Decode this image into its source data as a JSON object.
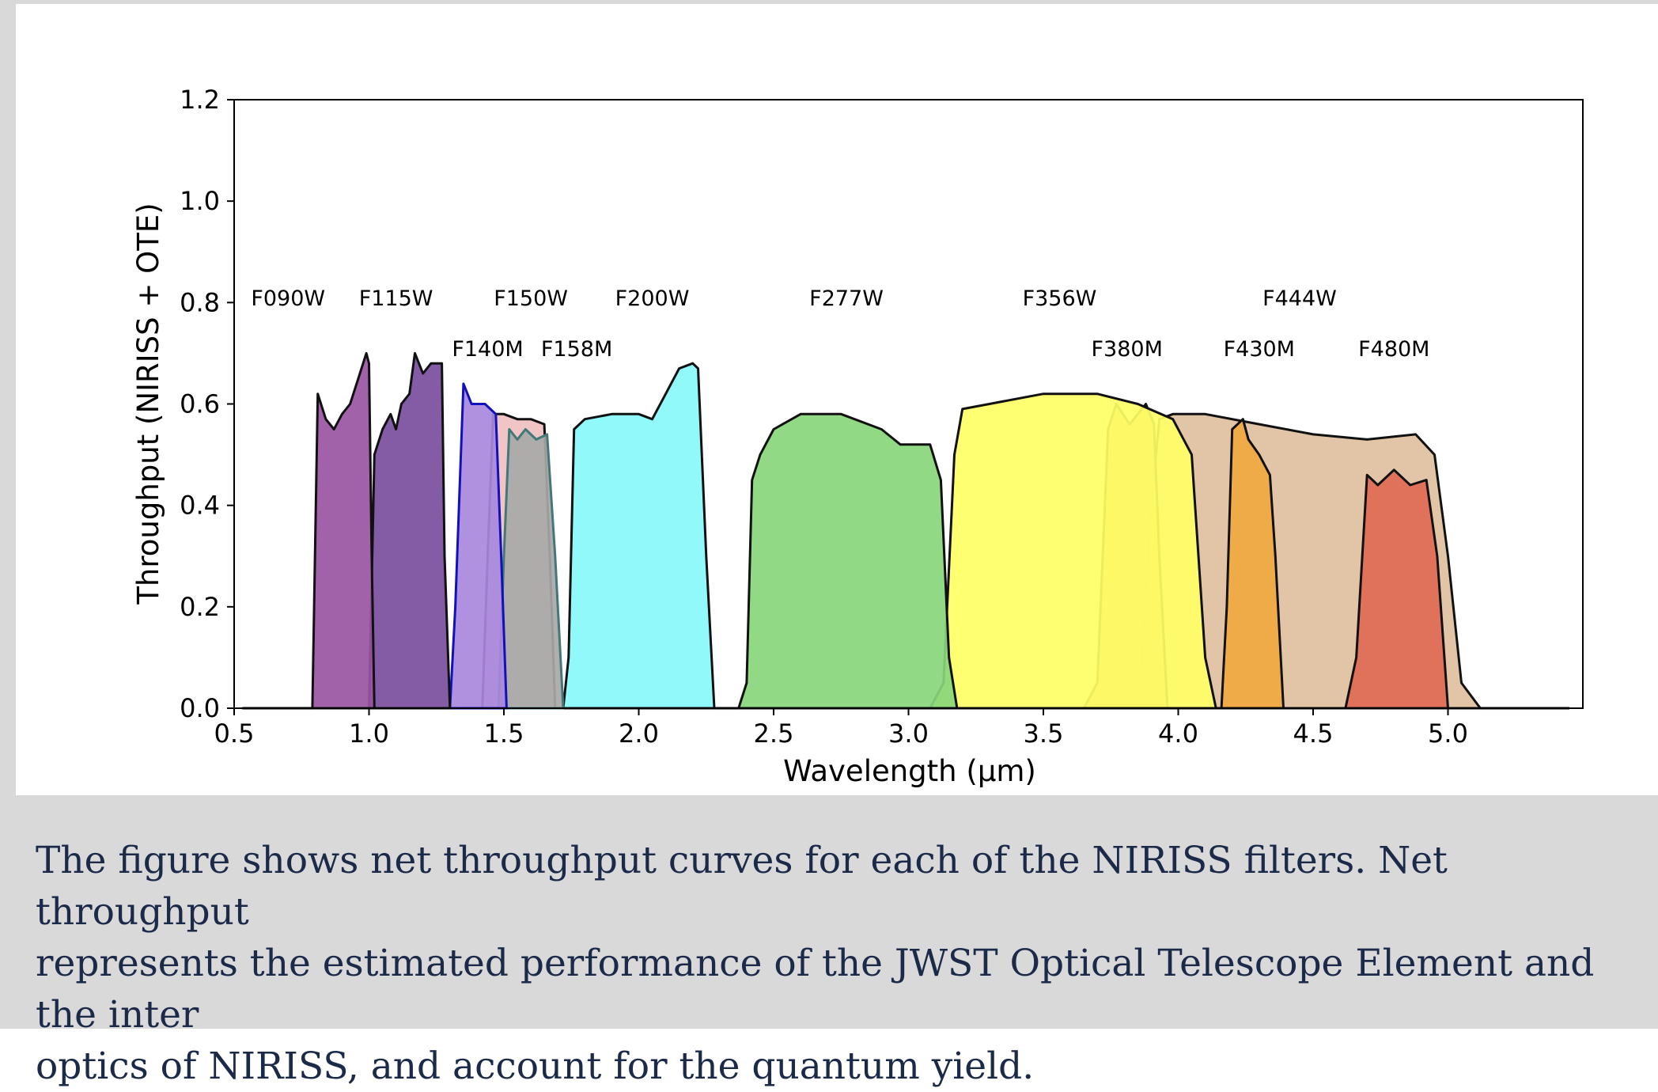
{
  "caption": "The figure shows net throughput curves for each of the NIRISS filters. Net throughput\nrepresents the estimated performance of the JWST Optical Telescope Element and the inter\noptics of NIRISS, and account for the quantum yield.",
  "chart_data": {
    "type": "area",
    "title": "",
    "xlabel": "Wavelength (μm)",
    "ylabel": "Throughput (NIRISS + OTE)",
    "xlim": [
      0.5,
      5.5
    ],
    "ylim": [
      0.0,
      1.2
    ],
    "xticks": [
      "0.5",
      "1.0",
      "1.5",
      "2.0",
      "2.5",
      "3.0",
      "3.5",
      "4.0",
      "4.5",
      "5.0"
    ],
    "yticks": [
      "0.0",
      "0.2",
      "0.4",
      "0.6",
      "0.8",
      "1.0",
      "1.2"
    ],
    "grid": false,
    "series": [
      {
        "name": "F444W",
        "color": "#dfc0a0",
        "edge": "#111111",
        "points": [
          [
            3.8,
            0.0
          ],
          [
            3.86,
            0.05
          ],
          [
            3.9,
            0.4
          ],
          [
            3.93,
            0.57
          ],
          [
            3.98,
            0.58
          ],
          [
            4.1,
            0.58
          ],
          [
            4.3,
            0.56
          ],
          [
            4.5,
            0.54
          ],
          [
            4.7,
            0.53
          ],
          [
            4.88,
            0.54
          ],
          [
            4.95,
            0.5
          ],
          [
            5.0,
            0.3
          ],
          [
            5.05,
            0.05
          ],
          [
            5.12,
            0.0
          ]
        ]
      },
      {
        "name": "F380M",
        "color": "#e0a060",
        "edge": "#111111",
        "points": [
          [
            3.65,
            0.0
          ],
          [
            3.7,
            0.05
          ],
          [
            3.74,
            0.55
          ],
          [
            3.77,
            0.6
          ],
          [
            3.82,
            0.56
          ],
          [
            3.85,
            0.58
          ],
          [
            3.88,
            0.6
          ],
          [
            3.91,
            0.56
          ],
          [
            3.93,
            0.3
          ],
          [
            3.96,
            0.0
          ]
        ]
      },
      {
        "name": "F356W",
        "color": "#ffff66",
        "edge": "#111111",
        "points": [
          [
            3.08,
            0.0
          ],
          [
            3.13,
            0.05
          ],
          [
            3.17,
            0.5
          ],
          [
            3.2,
            0.59
          ],
          [
            3.3,
            0.6
          ],
          [
            3.5,
            0.62
          ],
          [
            3.7,
            0.62
          ],
          [
            3.85,
            0.6
          ],
          [
            3.98,
            0.57
          ],
          [
            4.05,
            0.5
          ],
          [
            4.1,
            0.1
          ],
          [
            4.14,
            0.0
          ]
        ]
      },
      {
        "name": "F277W",
        "color": "#88d67a",
        "edge": "#111111",
        "points": [
          [
            2.37,
            0.0
          ],
          [
            2.4,
            0.05
          ],
          [
            2.42,
            0.45
          ],
          [
            2.45,
            0.5
          ],
          [
            2.5,
            0.55
          ],
          [
            2.6,
            0.58
          ],
          [
            2.75,
            0.58
          ],
          [
            2.9,
            0.55
          ],
          [
            2.97,
            0.52
          ],
          [
            3.08,
            0.52
          ],
          [
            3.12,
            0.45
          ],
          [
            3.15,
            0.1
          ],
          [
            3.18,
            0.0
          ]
        ]
      },
      {
        "name": "F200W",
        "color": "#88f8f8",
        "edge": "#111111",
        "points": [
          [
            1.72,
            0.0
          ],
          [
            1.74,
            0.1
          ],
          [
            1.76,
            0.55
          ],
          [
            1.8,
            0.57
          ],
          [
            1.9,
            0.58
          ],
          [
            2.0,
            0.58
          ],
          [
            2.05,
            0.57
          ],
          [
            2.1,
            0.62
          ],
          [
            2.15,
            0.67
          ],
          [
            2.2,
            0.68
          ],
          [
            2.22,
            0.67
          ],
          [
            2.25,
            0.3
          ],
          [
            2.28,
            0.0
          ]
        ]
      },
      {
        "name": "F150W",
        "color": "#f0c0c0",
        "edge": "#111111",
        "points": [
          [
            1.42,
            0.0
          ],
          [
            1.44,
            0.3
          ],
          [
            1.46,
            0.58
          ],
          [
            1.5,
            0.58
          ],
          [
            1.55,
            0.57
          ],
          [
            1.6,
            0.57
          ],
          [
            1.65,
            0.56
          ],
          [
            1.67,
            0.3
          ],
          [
            1.69,
            0.0
          ]
        ]
      },
      {
        "name": "F158M",
        "color": "#a8a8a8",
        "edge": "#447777",
        "points": [
          [
            1.48,
            0.0
          ],
          [
            1.5,
            0.3
          ],
          [
            1.52,
            0.55
          ],
          [
            1.55,
            0.53
          ],
          [
            1.58,
            0.55
          ],
          [
            1.62,
            0.53
          ],
          [
            1.66,
            0.54
          ],
          [
            1.69,
            0.3
          ],
          [
            1.72,
            0.0
          ]
        ]
      },
      {
        "name": "F140M",
        "color": "#a888dd",
        "edge": "#1111bb",
        "points": [
          [
            1.3,
            0.0
          ],
          [
            1.32,
            0.2
          ],
          [
            1.35,
            0.64
          ],
          [
            1.38,
            0.6
          ],
          [
            1.43,
            0.6
          ],
          [
            1.47,
            0.58
          ],
          [
            1.49,
            0.3
          ],
          [
            1.51,
            0.0
          ]
        ]
      },
      {
        "name": "F115W",
        "color": "#7a4e9e",
        "edge": "#111111",
        "points": [
          [
            1.0,
            0.0
          ],
          [
            1.02,
            0.5
          ],
          [
            1.05,
            0.55
          ],
          [
            1.08,
            0.58
          ],
          [
            1.1,
            0.55
          ],
          [
            1.12,
            0.6
          ],
          [
            1.15,
            0.62
          ],
          [
            1.17,
            0.7
          ],
          [
            1.2,
            0.66
          ],
          [
            1.23,
            0.68
          ],
          [
            1.27,
            0.68
          ],
          [
            1.28,
            0.3
          ],
          [
            1.3,
            0.0
          ]
        ]
      },
      {
        "name": "F090W",
        "color": "#9a55a3",
        "edge": "#111111",
        "points": [
          [
            0.79,
            0.0
          ],
          [
            0.81,
            0.62
          ],
          [
            0.84,
            0.57
          ],
          [
            0.87,
            0.55
          ],
          [
            0.9,
            0.58
          ],
          [
            0.93,
            0.6
          ],
          [
            0.96,
            0.65
          ],
          [
            0.99,
            0.7
          ],
          [
            1.0,
            0.68
          ],
          [
            1.01,
            0.3
          ],
          [
            1.02,
            0.0
          ]
        ]
      },
      {
        "name": "F430M",
        "color": "#f0a840",
        "edge": "#111111",
        "points": [
          [
            4.16,
            0.0
          ],
          [
            4.18,
            0.2
          ],
          [
            4.2,
            0.55
          ],
          [
            4.24,
            0.57
          ],
          [
            4.26,
            0.53
          ],
          [
            4.3,
            0.5
          ],
          [
            4.34,
            0.46
          ],
          [
            4.36,
            0.3
          ],
          [
            4.39,
            0.0
          ]
        ]
      },
      {
        "name": "F480M",
        "color": "#e06a55",
        "edge": "#111111",
        "points": [
          [
            4.62,
            0.0
          ],
          [
            4.66,
            0.1
          ],
          [
            4.7,
            0.46
          ],
          [
            4.74,
            0.44
          ],
          [
            4.8,
            0.47
          ],
          [
            4.86,
            0.44
          ],
          [
            4.92,
            0.45
          ],
          [
            4.96,
            0.3
          ],
          [
            5.0,
            0.0
          ]
        ]
      }
    ],
    "labels": [
      {
        "text": "F090W",
        "x": 0.7,
        "y": 0.81
      },
      {
        "text": "F115W",
        "x": 1.1,
        "y": 0.81
      },
      {
        "text": "F150W",
        "x": 1.6,
        "y": 0.81
      },
      {
        "text": "F200W",
        "x": 2.05,
        "y": 0.81
      },
      {
        "text": "F277W",
        "x": 2.77,
        "y": 0.81
      },
      {
        "text": "F356W",
        "x": 3.56,
        "y": 0.81
      },
      {
        "text": "F444W",
        "x": 4.45,
        "y": 0.81
      },
      {
        "text": "F140M",
        "x": 1.44,
        "y": 0.71
      },
      {
        "text": "F158M",
        "x": 1.77,
        "y": 0.71
      },
      {
        "text": "F380M",
        "x": 3.81,
        "y": 0.71
      },
      {
        "text": "F430M",
        "x": 4.3,
        "y": 0.71
      },
      {
        "text": "F480M",
        "x": 4.8,
        "y": 0.71
      }
    ]
  }
}
